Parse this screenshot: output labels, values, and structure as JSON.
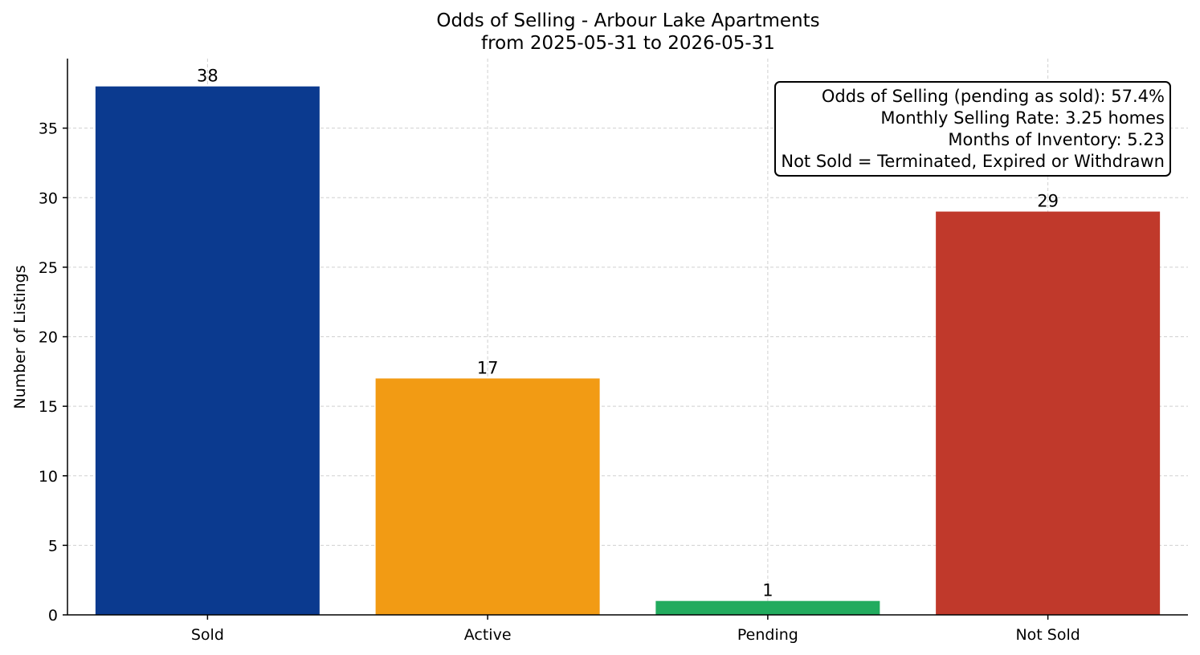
{
  "chart_data": {
    "type": "bar",
    "title_line1": "Odds of Selling - Arbour Lake Apartments",
    "title_line2": "from 2025-05-31 to 2026-05-31",
    "xlabel": "",
    "ylabel": "Number of Listings",
    "categories": [
      "Sold",
      "Active",
      "Pending",
      "Not Sold"
    ],
    "values": [
      38,
      17,
      1,
      29
    ],
    "colors": [
      "#0b3a8f",
      "#f29b14",
      "#22ab5e",
      "#c0392b"
    ],
    "ylim": [
      0,
      40
    ],
    "yticks": [
      0,
      5,
      10,
      15,
      20,
      25,
      30,
      35
    ],
    "grid": true,
    "annotation_lines": [
      "Odds of Selling (pending as sold): 57.4%",
      "Monthly Selling Rate: 3.25 homes",
      "Months of Inventory: 5.23",
      "Not Sold = Terminated, Expired or Withdrawn"
    ],
    "annotation_placement": "top-right"
  }
}
